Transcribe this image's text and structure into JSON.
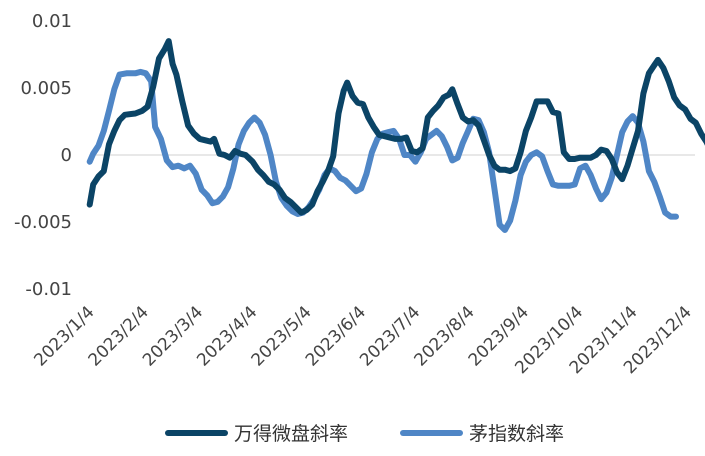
{
  "chart_data": {
    "type": "line",
    "title": "",
    "xlabel": "",
    "ylabel": "",
    "ylim": [
      -0.01,
      0.01
    ],
    "yticks": [
      "0.01",
      "0.005",
      "0",
      "-0.005",
      "-0.01"
    ],
    "ytick_values": [
      0.01,
      0.005,
      0,
      -0.005,
      -0.01
    ],
    "x_tick_labels": [
      "2023/1/4",
      "2023/2/4",
      "2023/3/4",
      "2023/4/4",
      "2023/5/4",
      "2023/6/4",
      "2023/7/4",
      "2023/8/4",
      "2023/9/4",
      "2023/10/4",
      "2023/11/4",
      "2023/12/4"
    ],
    "grid": false,
    "legend_position": "bottom",
    "series": [
      {
        "name": "万得微盘斜率",
        "color": "#0b4466",
        "points": [
          [
            "2023-01-01",
            -0.0037
          ],
          [
            "2023-01-03",
            -0.0022
          ],
          [
            "2023-01-06",
            -0.0016
          ],
          [
            "2023-01-09",
            -0.0012
          ],
          [
            "2023-01-12",
            0.0008
          ],
          [
            "2023-01-15",
            0.0018
          ],
          [
            "2023-01-18",
            0.0026
          ],
          [
            "2023-01-21",
            0.003
          ],
          [
            "2023-01-27",
            0.0031
          ],
          [
            "2023-01-31",
            0.0033
          ],
          [
            "2023-02-03",
            0.0036
          ],
          [
            "2023-02-06",
            0.0051
          ],
          [
            "2023-02-09",
            0.0072
          ],
          [
            "2023-02-12",
            0.0079
          ],
          [
            "2023-02-14",
            0.0085
          ],
          [
            "2023-02-16",
            0.0068
          ],
          [
            "2023-02-18",
            0.006
          ],
          [
            "2023-02-21",
            0.004
          ],
          [
            "2023-02-24",
            0.0022
          ],
          [
            "2023-02-27",
            0.0016
          ],
          [
            "2023-03-02",
            0.0012
          ],
          [
            "2023-03-05",
            0.0011
          ],
          [
            "2023-03-08",
            0.001
          ],
          [
            "2023-03-10",
            0.0012
          ],
          [
            "2023-03-13",
            0.0001
          ],
          [
            "2023-03-16",
            0.0
          ],
          [
            "2023-03-19",
            -0.0002
          ],
          [
            "2023-03-22",
            0.0003
          ],
          [
            "2023-03-25",
            0.0001
          ],
          [
            "2023-03-28",
            0.0
          ],
          [
            "2023-04-01",
            -0.0005
          ],
          [
            "2023-04-04",
            -0.0011
          ],
          [
            "2023-04-07",
            -0.0015
          ],
          [
            "2023-04-10",
            -0.002
          ],
          [
            "2023-04-13",
            -0.0022
          ],
          [
            "2023-04-16",
            -0.0026
          ],
          [
            "2023-04-19",
            -0.0032
          ],
          [
            "2023-04-22",
            -0.0035
          ],
          [
            "2023-04-25",
            -0.0039
          ],
          [
            "2023-04-28",
            -0.0043
          ],
          [
            "2023-05-01",
            -0.0041
          ],
          [
            "2023-05-04",
            -0.0037
          ],
          [
            "2023-05-07",
            -0.0027
          ],
          [
            "2023-05-10",
            -0.002
          ],
          [
            "2023-05-13",
            -0.0012
          ],
          [
            "2023-05-16",
            -0.0001
          ],
          [
            "2023-05-19",
            0.0031
          ],
          [
            "2023-05-22",
            0.0048
          ],
          [
            "2023-05-24",
            0.0054
          ],
          [
            "2023-05-27",
            0.0044
          ],
          [
            "2023-05-30",
            0.0039
          ],
          [
            "2023-06-02",
            0.0038
          ],
          [
            "2023-06-05",
            0.0028
          ],
          [
            "2023-06-08",
            0.0021
          ],
          [
            "2023-06-11",
            0.0015
          ],
          [
            "2023-06-14",
            0.0014
          ],
          [
            "2023-06-17",
            0.0013
          ],
          [
            "2023-06-20",
            0.0012
          ],
          [
            "2023-06-23",
            0.0012
          ],
          [
            "2023-06-26",
            0.0013
          ],
          [
            "2023-06-29",
            0.0003
          ],
          [
            "2023-07-02",
            0.0002
          ],
          [
            "2023-07-05",
            0.0005
          ],
          [
            "2023-07-08",
            0.0028
          ],
          [
            "2023-07-11",
            0.0033
          ],
          [
            "2023-07-14",
            0.0037
          ],
          [
            "2023-07-17",
            0.0043
          ],
          [
            "2023-07-20",
            0.0045
          ],
          [
            "2023-07-22",
            0.0049
          ],
          [
            "2023-07-25",
            0.0038
          ],
          [
            "2023-07-28",
            0.0028
          ],
          [
            "2023-07-31",
            0.0025
          ],
          [
            "2023-08-03",
            0.0026
          ],
          [
            "2023-08-06",
            0.0022
          ],
          [
            "2023-08-09",
            0.0011
          ],
          [
            "2023-08-12",
            0.0
          ],
          [
            "2023-08-15",
            -0.0008
          ],
          [
            "2023-08-18",
            -0.0011
          ],
          [
            "2023-08-21",
            -0.0011
          ],
          [
            "2023-08-24",
            -0.0012
          ],
          [
            "2023-08-27",
            -0.001
          ],
          [
            "2023-08-30",
            0.0002
          ],
          [
            "2023-09-02",
            0.0018
          ],
          [
            "2023-09-05",
            0.0028
          ],
          [
            "2023-09-08",
            0.004
          ],
          [
            "2023-09-11",
            0.004
          ],
          [
            "2023-09-14",
            0.004
          ],
          [
            "2023-09-17",
            0.0032
          ],
          [
            "2023-09-20",
            0.0031
          ],
          [
            "2023-09-23",
            0.0002
          ],
          [
            "2023-09-26",
            -0.0003
          ],
          [
            "2023-09-29",
            -0.0003
          ],
          [
            "2023-10-02",
            -0.0002
          ],
          [
            "2023-10-05",
            -0.0002
          ],
          [
            "2023-10-08",
            -0.0002
          ],
          [
            "2023-10-11",
            0.0
          ],
          [
            "2023-10-14",
            0.0004
          ],
          [
            "2023-10-17",
            0.0003
          ],
          [
            "2023-10-20",
            -0.0003
          ],
          [
            "2023-10-23",
            -0.0013
          ],
          [
            "2023-10-26",
            -0.0018
          ],
          [
            "2023-10-29",
            -0.0008
          ],
          [
            "2023-11-01",
            0.0005
          ],
          [
            "2023-11-04",
            0.0018
          ],
          [
            "2023-11-07",
            0.0046
          ],
          [
            "2023-11-10",
            0.0061
          ],
          [
            "2023-11-13",
            0.0067
          ],
          [
            "2023-11-15",
            0.0071
          ],
          [
            "2023-11-18",
            0.0065
          ],
          [
            "2023-11-21",
            0.0055
          ],
          [
            "2023-11-24",
            0.0043
          ],
          [
            "2023-11-27",
            0.0037
          ],
          [
            "2023-11-30",
            0.0034
          ],
          [
            "2023-12-03",
            0.0027
          ],
          [
            "2023-12-06",
            0.0024
          ],
          [
            "2023-12-09",
            0.0016
          ],
          [
            "2023-12-12",
            0.001
          ],
          [
            "2023-12-15",
            0.0002
          ]
        ]
      },
      {
        "name": "茅指数斜率",
        "color": "#4f86c6",
        "points": [
          [
            "2023-01-01",
            -0.0005
          ],
          [
            "2023-01-03",
            0.0001
          ],
          [
            "2023-01-06",
            0.0007
          ],
          [
            "2023-01-09",
            0.0018
          ],
          [
            "2023-01-12",
            0.0033
          ],
          [
            "2023-01-15",
            0.0049
          ],
          [
            "2023-01-18",
            0.006
          ],
          [
            "2023-01-22",
            0.0061
          ],
          [
            "2023-01-27",
            0.0061
          ],
          [
            "2023-01-30",
            0.0062
          ],
          [
            "2023-02-02",
            0.0061
          ],
          [
            "2023-02-05",
            0.0055
          ],
          [
            "2023-02-07",
            0.0021
          ],
          [
            "2023-02-10",
            0.0012
          ],
          [
            "2023-02-13",
            -0.0004
          ],
          [
            "2023-02-16",
            -0.0009
          ],
          [
            "2023-02-19",
            -0.0008
          ],
          [
            "2023-02-22",
            -0.001
          ],
          [
            "2023-02-25",
            -0.0008
          ],
          [
            "2023-02-28",
            -0.0014
          ],
          [
            "2023-03-03",
            -0.0026
          ],
          [
            "2023-03-06",
            -0.003
          ],
          [
            "2023-03-09",
            -0.0036
          ],
          [
            "2023-03-12",
            -0.0035
          ],
          [
            "2023-03-15",
            -0.0031
          ],
          [
            "2023-03-18",
            -0.0024
          ],
          [
            "2023-03-21",
            -0.001
          ],
          [
            "2023-03-24",
            0.0008
          ],
          [
            "2023-03-27",
            0.0018
          ],
          [
            "2023-03-30",
            0.0024
          ],
          [
            "2023-04-02",
            0.0028
          ],
          [
            "2023-04-05",
            0.0024
          ],
          [
            "2023-04-08",
            0.0015
          ],
          [
            "2023-04-11",
            0.0
          ],
          [
            "2023-04-14",
            -0.002
          ],
          [
            "2023-04-17",
            -0.0032
          ],
          [
            "2023-04-20",
            -0.0038
          ],
          [
            "2023-04-23",
            -0.0042
          ],
          [
            "2023-04-26",
            -0.0044
          ],
          [
            "2023-04-29",
            -0.0043
          ],
          [
            "2023-05-02",
            -0.0039
          ],
          [
            "2023-05-05",
            -0.0033
          ],
          [
            "2023-05-08",
            -0.0026
          ],
          [
            "2023-05-11",
            -0.0015
          ],
          [
            "2023-05-14",
            -0.001
          ],
          [
            "2023-05-17",
            -0.0012
          ],
          [
            "2023-05-20",
            -0.0017
          ],
          [
            "2023-05-23",
            -0.0019
          ],
          [
            "2023-05-26",
            -0.0023
          ],
          [
            "2023-05-29",
            -0.0027
          ],
          [
            "2023-06-01",
            -0.0025
          ],
          [
            "2023-06-04",
            -0.0014
          ],
          [
            "2023-06-07",
            0.0002
          ],
          [
            "2023-06-10",
            0.0012
          ],
          [
            "2023-06-13",
            0.0016
          ],
          [
            "2023-06-16",
            0.0017
          ],
          [
            "2023-06-19",
            0.0018
          ],
          [
            "2023-06-22",
            0.0012
          ],
          [
            "2023-06-25",
            0.0
          ],
          [
            "2023-06-28",
            0.0
          ],
          [
            "2023-07-01",
            -0.0005
          ],
          [
            "2023-07-04",
            0.0002
          ],
          [
            "2023-07-07",
            0.0012
          ],
          [
            "2023-07-10",
            0.0015
          ],
          [
            "2023-07-13",
            0.0018
          ],
          [
            "2023-07-16",
            0.0014
          ],
          [
            "2023-07-19",
            0.0006
          ],
          [
            "2023-07-22",
            -0.0004
          ],
          [
            "2023-07-25",
            -0.0002
          ],
          [
            "2023-07-28",
            0.0009
          ],
          [
            "2023-07-31",
            0.0018
          ],
          [
            "2023-08-03",
            0.0027
          ],
          [
            "2023-08-06",
            0.0026
          ],
          [
            "2023-08-09",
            0.0017
          ],
          [
            "2023-08-12",
            0.0002
          ],
          [
            "2023-08-15",
            -0.0025
          ],
          [
            "2023-08-18",
            -0.0052
          ],
          [
            "2023-08-21",
            -0.0056
          ],
          [
            "2023-08-24",
            -0.0049
          ],
          [
            "2023-08-27",
            -0.0034
          ],
          [
            "2023-08-30",
            -0.0015
          ],
          [
            "2023-09-02",
            -0.0005
          ],
          [
            "2023-09-05",
            0.0
          ],
          [
            "2023-09-08",
            0.0002
          ],
          [
            "2023-09-11",
            -0.0001
          ],
          [
            "2023-09-14",
            -0.0012
          ],
          [
            "2023-09-17",
            -0.0022
          ],
          [
            "2023-09-20",
            -0.0023
          ],
          [
            "2023-09-23",
            -0.0023
          ],
          [
            "2023-09-26",
            -0.0023
          ],
          [
            "2023-09-29",
            -0.0022
          ],
          [
            "2023-10-02",
            -0.001
          ],
          [
            "2023-10-05",
            -0.0008
          ],
          [
            "2023-10-08",
            -0.0015
          ],
          [
            "2023-10-11",
            -0.0025
          ],
          [
            "2023-10-14",
            -0.0033
          ],
          [
            "2023-10-17",
            -0.0028
          ],
          [
            "2023-10-20",
            -0.0017
          ],
          [
            "2023-10-23",
            0.0
          ],
          [
            "2023-10-26",
            0.0017
          ],
          [
            "2023-10-29",
            0.0025
          ],
          [
            "2023-11-01",
            0.0029
          ],
          [
            "2023-11-04",
            0.0024
          ],
          [
            "2023-11-07",
            0.001
          ],
          [
            "2023-11-10",
            -0.0012
          ],
          [
            "2023-11-13",
            -0.002
          ],
          [
            "2023-11-16",
            -0.0031
          ],
          [
            "2023-11-19",
            -0.0043
          ],
          [
            "2023-11-22",
            -0.0046
          ],
          [
            "2023-11-25",
            -0.0046
          ]
        ]
      }
    ]
  }
}
